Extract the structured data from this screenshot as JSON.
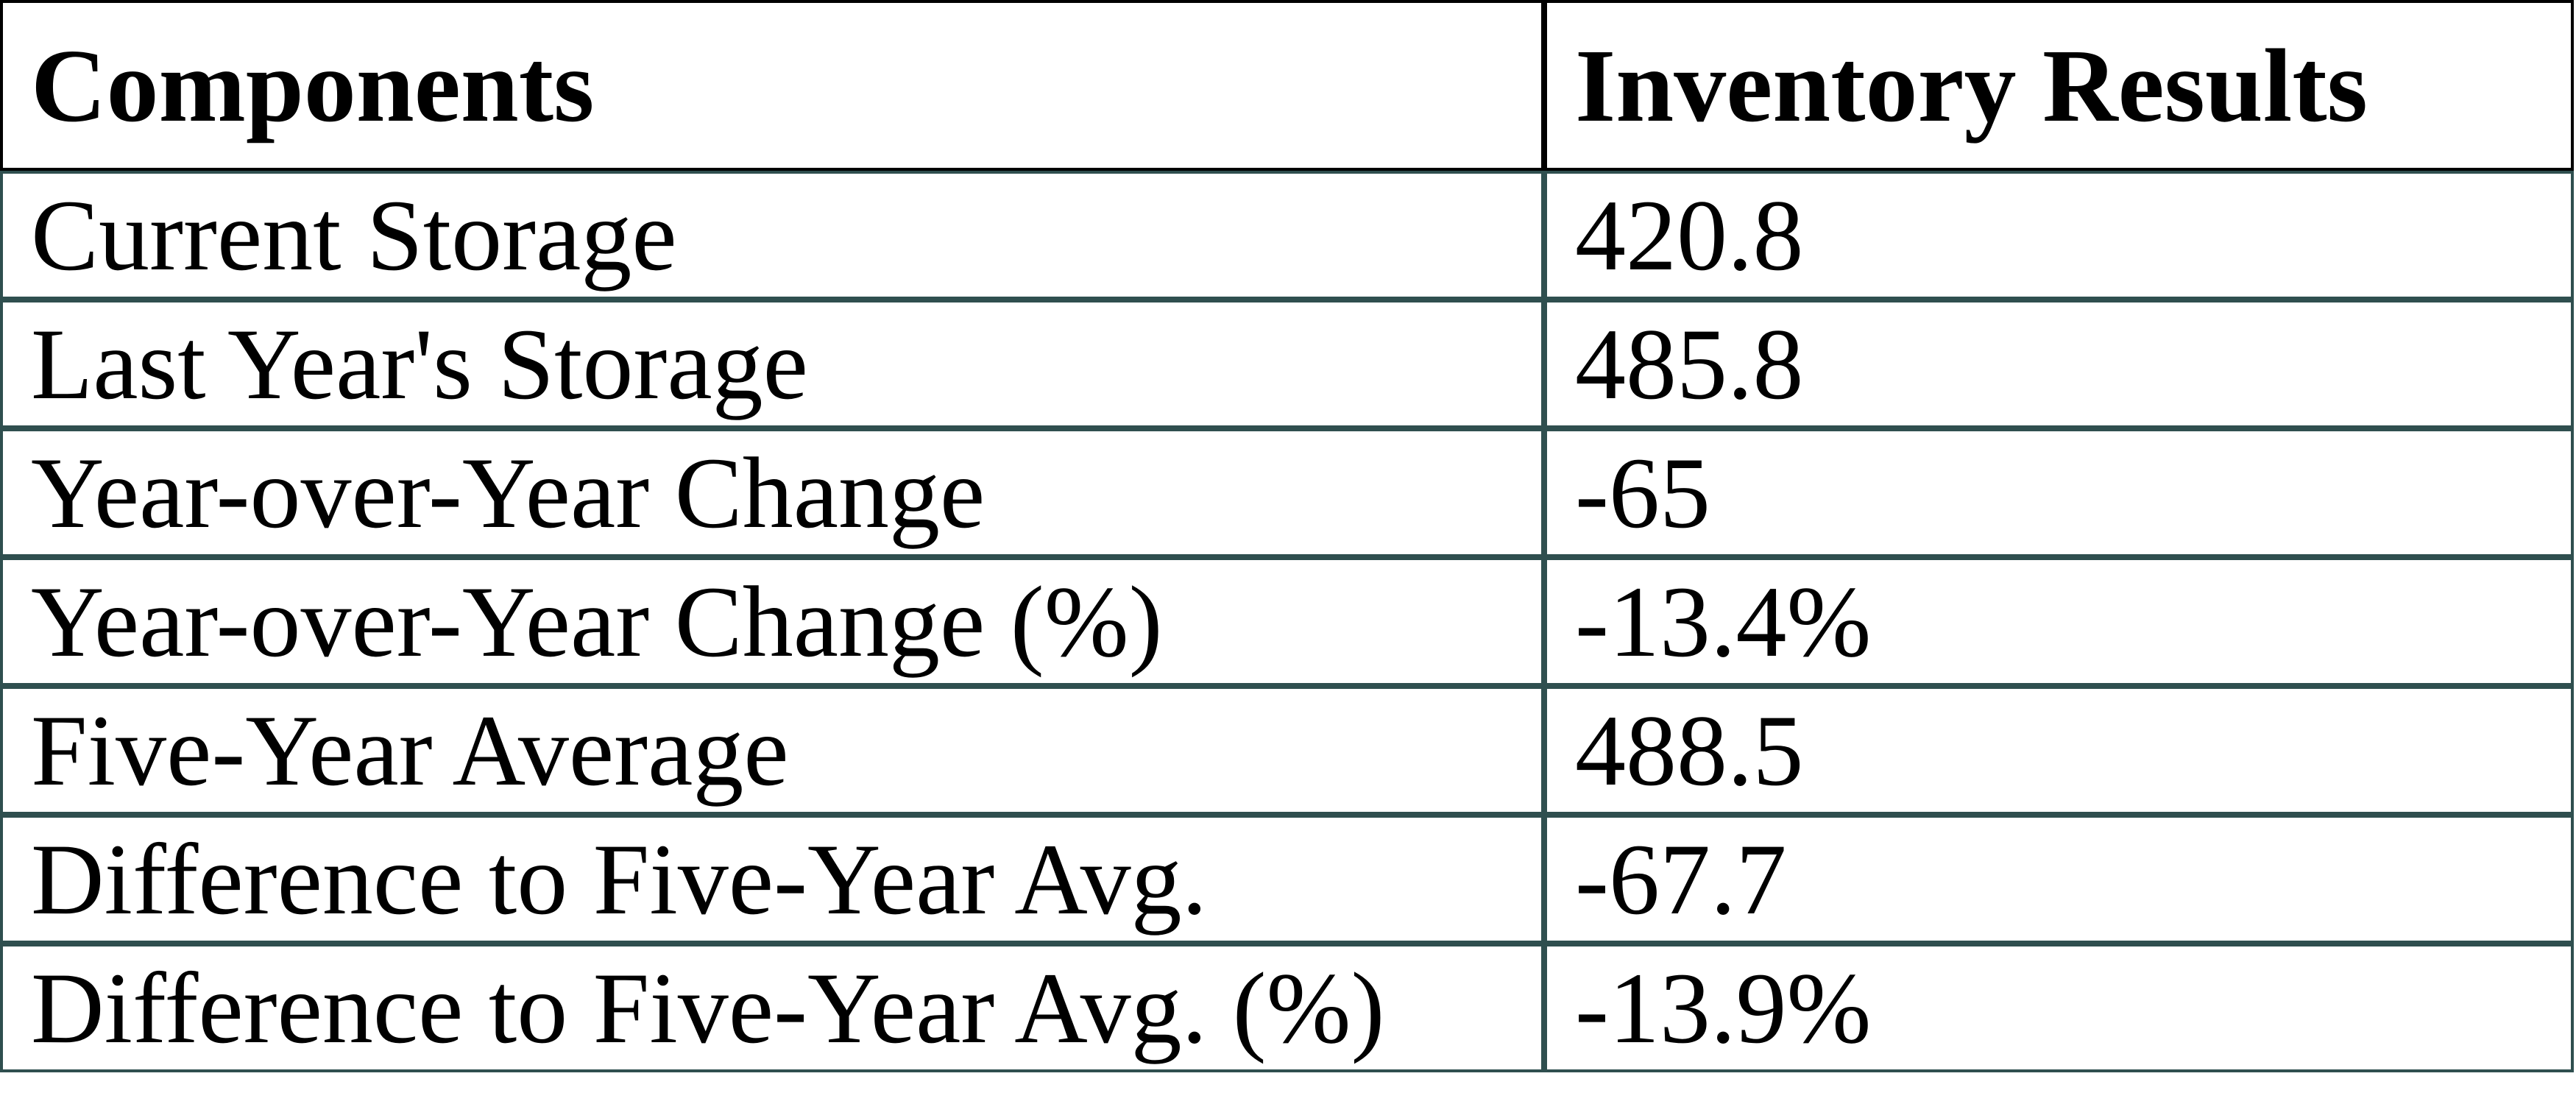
{
  "colors": {
    "header_border": "#000000",
    "body_border": "#2F4F4F",
    "text": "#000000",
    "background": "#FFFFFF"
  },
  "table": {
    "headers": [
      "Components",
      "Inventory Results"
    ],
    "rows": [
      {
        "component": "Current Storage",
        "result": "420.8"
      },
      {
        "component": "Last Year's Storage",
        "result": "485.8"
      },
      {
        "component": "Year-over-Year Change",
        "result": "-65"
      },
      {
        "component": "Year-over-Year Change (%)",
        "result": "-13.4%"
      },
      {
        "component": "Five-Year Average",
        "result": "488.5"
      },
      {
        "component": "Difference to Five-Year Avg.",
        "result": "-67.7"
      },
      {
        "component": "Difference to Five-Year Avg. (%)",
        "result": "-13.9%"
      }
    ]
  },
  "chart_data": {
    "type": "table",
    "title": "Inventory Results",
    "columns": [
      "Components",
      "Inventory Results"
    ],
    "rows": [
      [
        "Current Storage",
        420.8
      ],
      [
        "Last Year's Storage",
        485.8
      ],
      [
        "Year-over-Year Change",
        -65
      ],
      [
        "Year-over-Year Change (%)",
        "-13.4%"
      ],
      [
        "Five-Year Average",
        488.5
      ],
      [
        "Difference to Five-Year Avg.",
        -67.7
      ],
      [
        "Difference to Five-Year Avg. (%)",
        "-13.9%"
      ]
    ]
  }
}
